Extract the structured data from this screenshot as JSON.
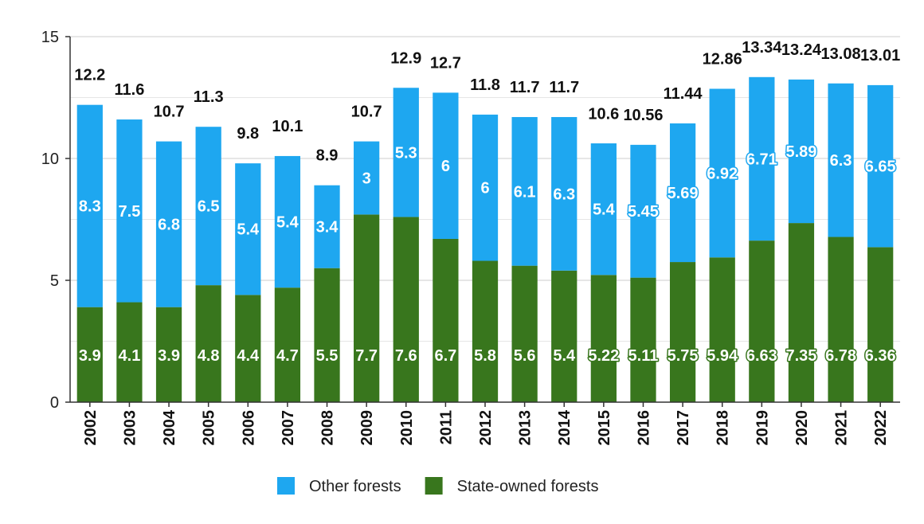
{
  "chart_data": {
    "type": "bar",
    "stacked": true,
    "categories": [
      "2002",
      "2003",
      "2004",
      "2005",
      "2006",
      "2007",
      "2008",
      "2009",
      "2010",
      "2011",
      "2012",
      "2013",
      "2014",
      "2015",
      "2016",
      "2017",
      "2018",
      "2019",
      "2020",
      "2021",
      "2022"
    ],
    "series": [
      {
        "name": "State-owned forests",
        "color": "#38761d",
        "values": [
          3.9,
          4.1,
          3.9,
          4.8,
          4.4,
          4.7,
          5.5,
          7.7,
          7.6,
          6.7,
          5.8,
          5.6,
          5.4,
          5.22,
          5.11,
          5.75,
          5.94,
          6.63,
          7.35,
          6.78,
          6.36
        ],
        "labels": [
          "3.9",
          "4.1",
          "3.9",
          "4.8",
          "4.4",
          "4.7",
          "5.5",
          "7.7",
          "7.6",
          "6.7",
          "5.8",
          "5.6",
          "5.4",
          "5.22",
          "5.11",
          "5.75",
          "5.94",
          "6.63",
          "7.35",
          "6.78",
          "6.36"
        ]
      },
      {
        "name": "Other forests",
        "color": "#1ea7f0",
        "values": [
          8.3,
          7.5,
          6.8,
          6.5,
          5.4,
          5.4,
          3.4,
          3,
          5.3,
          6,
          6,
          6.1,
          6.3,
          5.4,
          5.45,
          5.69,
          6.92,
          6.71,
          5.89,
          6.3,
          6.65
        ],
        "labels": [
          "8.3",
          "7.5",
          "6.8",
          "6.5",
          "5.4",
          "5.4",
          "3.4",
          "3",
          "5.3",
          "6",
          "6",
          "6.1",
          "6.3",
          "5.4",
          "5.45",
          "5.69",
          "6.92",
          "6.71",
          "5.89",
          "6.3",
          "6.65"
        ]
      }
    ],
    "totals": [
      12.2,
      11.6,
      10.7,
      11.3,
      9.8,
      10.1,
      8.9,
      10.7,
      12.9,
      12.7,
      11.8,
      11.7,
      11.7,
      10.6,
      10.56,
      11.44,
      12.86,
      13.34,
      13.24,
      13.08,
      13.01
    ],
    "total_labels": [
      "12.2",
      "11.6",
      "10.7",
      "11.3",
      "9.8",
      "10.1",
      "8.9",
      "10.7",
      "12.9",
      "12.7",
      "11.8",
      "11.7",
      "11.7",
      "10.6",
      "10.56",
      "11.44",
      "12.86",
      "13.34",
      "13.24",
      "13.08",
      "13.01"
    ],
    "ylim": [
      0,
      15
    ],
    "yticks": [
      0,
      5,
      10,
      15
    ],
    "title": "",
    "xlabel": "",
    "ylabel": "",
    "grid": true,
    "legend_position": "bottom",
    "legend": [
      {
        "name": "Other forests",
        "color": "#1ea7f0"
      },
      {
        "name": "State-owned forests",
        "color": "#38761d"
      }
    ]
  }
}
